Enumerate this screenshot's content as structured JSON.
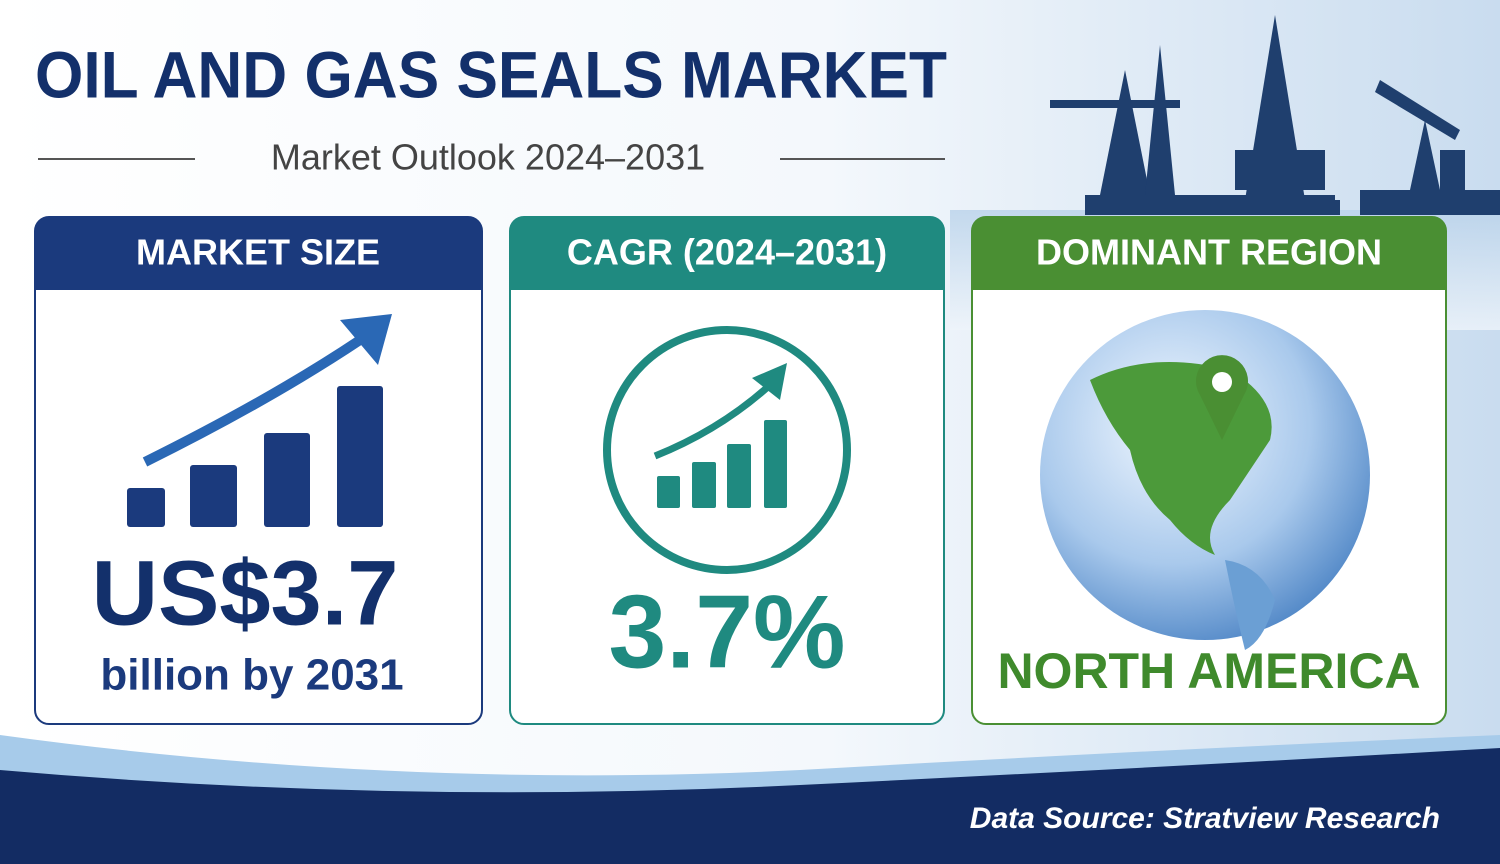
{
  "header": {
    "title": "OIL AND GAS SEALS MARKET",
    "subtitle": "Market Outlook 2024–2031"
  },
  "cards": [
    {
      "heading": "MARKET SIZE",
      "value": "US$3.7",
      "caption": "billion by 2031"
    },
    {
      "heading": "CAGR (2024–2031)",
      "value": "3.7%"
    },
    {
      "heading": "DOMINANT REGION",
      "value": "NORTH AMERICA"
    }
  ],
  "footer": {
    "source": "Data Source: Stratview Research"
  }
}
